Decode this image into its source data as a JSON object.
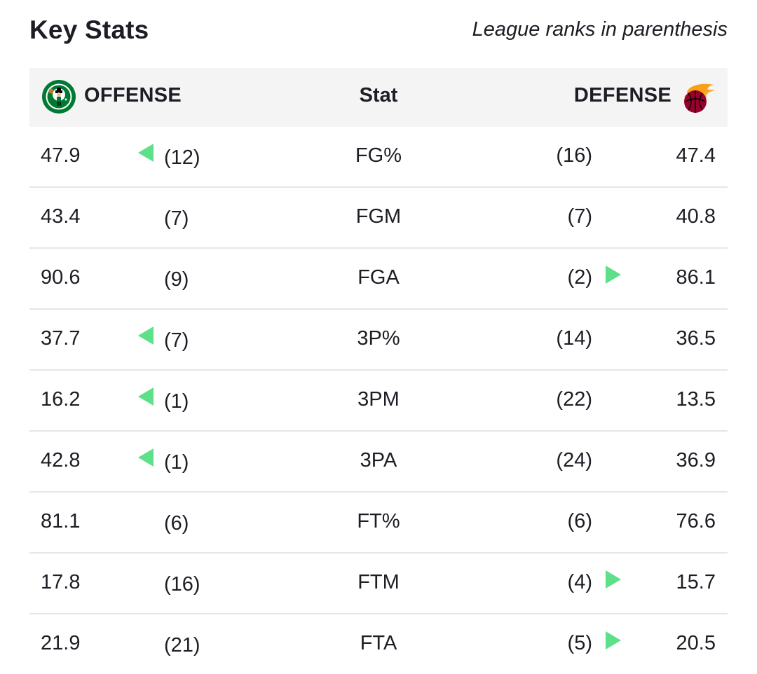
{
  "header": {
    "title": "Key Stats",
    "note": "League ranks in parenthesis"
  },
  "table": {
    "offense_label": "OFFENSE",
    "stat_label": "Stat",
    "defense_label": "DEFENSE",
    "offense_logo": "celtics-logo",
    "defense_logo": "heat-logo",
    "indicator_color": "#5ee08a",
    "rows": [
      {
        "off_value": "47.9",
        "off_rank": "(12)",
        "stat": "FG%",
        "def_rank": "(16)",
        "def_value": "47.4",
        "off_better": true,
        "def_better": false
      },
      {
        "off_value": "43.4",
        "off_rank": "(7)",
        "stat": "FGM",
        "def_rank": "(7)",
        "def_value": "40.8",
        "off_better": false,
        "def_better": false
      },
      {
        "off_value": "90.6",
        "off_rank": "(9)",
        "stat": "FGA",
        "def_rank": "(2)",
        "def_value": "86.1",
        "off_better": false,
        "def_better": true
      },
      {
        "off_value": "37.7",
        "off_rank": "(7)",
        "stat": "3P%",
        "def_rank": "(14)",
        "def_value": "36.5",
        "off_better": true,
        "def_better": false
      },
      {
        "off_value": "16.2",
        "off_rank": "(1)",
        "stat": "3PM",
        "def_rank": "(22)",
        "def_value": "13.5",
        "off_better": true,
        "def_better": false
      },
      {
        "off_value": "42.8",
        "off_rank": "(1)",
        "stat": "3PA",
        "def_rank": "(24)",
        "def_value": "36.9",
        "off_better": true,
        "def_better": false
      },
      {
        "off_value": "81.1",
        "off_rank": "(6)",
        "stat": "FT%",
        "def_rank": "(6)",
        "def_value": "76.6",
        "off_better": false,
        "def_better": false
      },
      {
        "off_value": "17.8",
        "off_rank": "(16)",
        "stat": "FTM",
        "def_rank": "(4)",
        "def_value": "15.7",
        "off_better": false,
        "def_better": true
      },
      {
        "off_value": "21.9",
        "off_rank": "(21)",
        "stat": "FTA",
        "def_rank": "(5)",
        "def_value": "20.5",
        "off_better": false,
        "def_better": true
      }
    ]
  }
}
